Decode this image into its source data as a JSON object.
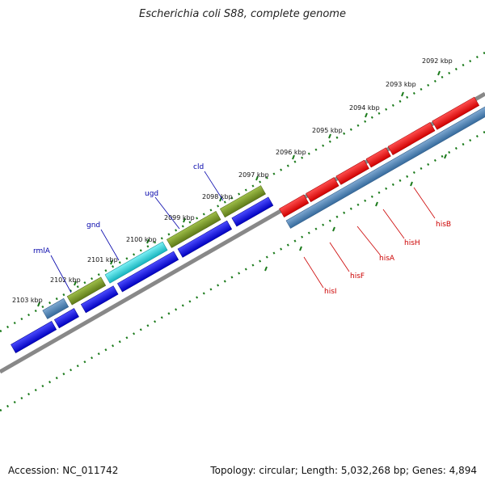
{
  "title": "Escherichia coli S88, complete genome",
  "accession": "Accession: NC_011742",
  "genome_info": "Topology: circular; Length: 5,032,268 bp; Genes: 4,894",
  "scale_labels": [
    "2092 kbp",
    "2093 kbp",
    "2094 kbp",
    "2095 kbp",
    "2096 kbp",
    "2097 kbp",
    "2098 kbp",
    "2099 kbp",
    "2100 kbp",
    "2101 kbp",
    "2102 kbp",
    "2103 kbp"
  ],
  "genes_reverse_strand": [
    {
      "name": "rmlA",
      "color": "#4a7fb0"
    },
    {
      "name": "gnd",
      "color": "#2fd0d8"
    },
    {
      "name": "ugd",
      "color": "#7a9a2a"
    },
    {
      "name": "cld",
      "color": "#7a9a2a"
    }
  ],
  "genes_forward_strand": [
    {
      "name": "hisB",
      "color": "#ff1010"
    },
    {
      "name": "hisH",
      "color": "#ff1010"
    },
    {
      "name": "hisA",
      "color": "#ff1010"
    },
    {
      "name": "hisF",
      "color": "#ff1010"
    },
    {
      "name": "hisI",
      "color": "#ff1010"
    }
  ],
  "colors": {
    "backbone": "#888888",
    "cds_blue": "#1010ee",
    "operon_blue": "#4a7fb0",
    "tick_green": "#1a7a1a",
    "label_blue": "#0000aa",
    "label_red": "#cc0000"
  }
}
